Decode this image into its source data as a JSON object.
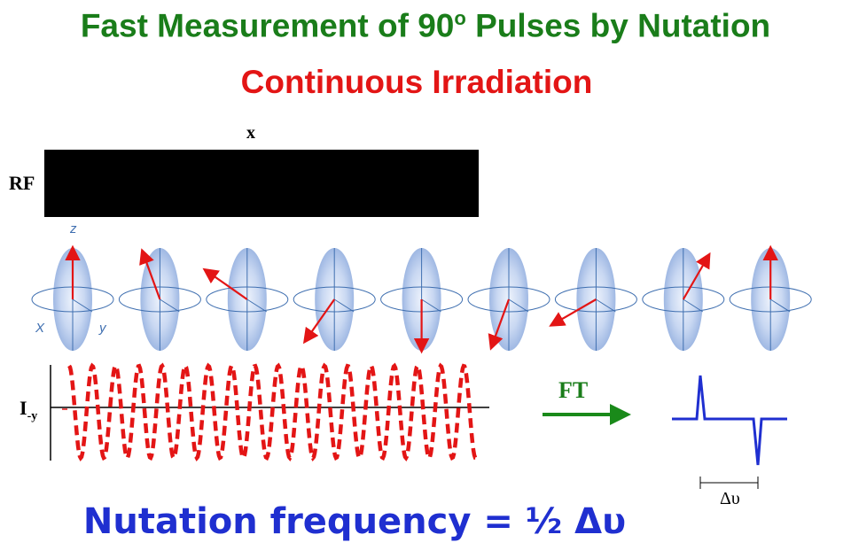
{
  "title": {
    "main": "Fast Measurement of 90",
    "degree": "o",
    "rest": " Pulses by Nutation"
  },
  "subtitle": "Continuous Irradiation",
  "pulse_phase": "x",
  "rf_label": "RF",
  "axes": {
    "z": "z",
    "x": "X",
    "y": "y"
  },
  "signal_label": {
    "main": "I",
    "sub": "-y"
  },
  "ft_label": "FT",
  "delta_label": "Δυ",
  "formula": "Nutation frequency = ½ Δυ",
  "colors": {
    "title": "#1a7d1a",
    "subtitle": "#e31515",
    "vector": "#e31515",
    "sphere": "#b9cdee",
    "spectrum": "#1f2fd0",
    "formula": "#1f2fd0",
    "arrow": "#1a8a1a"
  },
  "magnetization_tilts_deg": [
    0,
    -20,
    -55,
    -145,
    -180,
    -160,
    -120,
    30,
    0
  ]
}
